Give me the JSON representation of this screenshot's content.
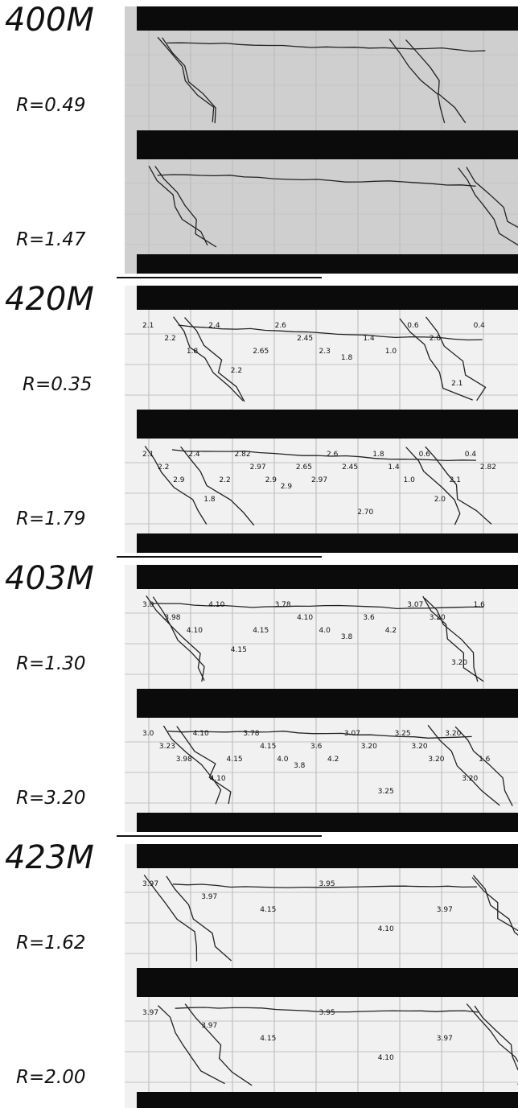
{
  "specimens": [
    {
      "name": "400M",
      "panels": [
        {
          "ratio": "R=0.49"
        },
        {
          "ratio": "R=1.47"
        }
      ]
    },
    {
      "name": "420M",
      "panels": [
        {
          "ratio": "R=0.35",
          "crack_labels": [
            "2.1",
            "2.2",
            "1.8",
            "2.4",
            "2.2",
            "2.65",
            "2.6",
            "2.45",
            "2.3",
            "1.8",
            "1.4",
            "1.0",
            "0.6",
            "2.0",
            "2.1",
            "0.4"
          ]
        },
        {
          "ratio": "R=1.79",
          "crack_labels": [
            "2.1",
            "2.2",
            "2.9",
            "2.4",
            "1.8",
            "2.2",
            "2.82",
            "2.97",
            "2.9",
            "2.9",
            "2.65",
            "2.97",
            "2.6",
            "2.45",
            "2.70",
            "1.8",
            "1.4",
            "1.0",
            "0.6",
            "2.0",
            "2.1",
            "0.4",
            "2.82"
          ]
        }
      ]
    },
    {
      "name": "403M",
      "panels": [
        {
          "ratio": "R=1.30",
          "crack_labels": [
            "3.0",
            "3.98",
            "4.10",
            "4.10",
            "4.15",
            "4.15",
            "3.78",
            "4.10",
            "4.0",
            "3.8",
            "3.6",
            "4.2",
            "3.07",
            "3.20",
            "3.20",
            "1.6"
          ]
        },
        {
          "ratio": "R=3.20",
          "crack_labels": [
            "3.0",
            "3.23",
            "3.98",
            "4.10",
            "4.10",
            "4.15",
            "3.78",
            "4.15",
            "4.0",
            "3.8",
            "3.6",
            "4.2",
            "3.07",
            "3.20",
            "3.25",
            "3.25",
            "3.20",
            "3.20",
            "3.20",
            "3.20",
            "1.6"
          ]
        }
      ]
    },
    {
      "name": "423M",
      "panels": [
        {
          "ratio": "R=1.62",
          "crack_labels": [
            "3.97",
            "3.97",
            "4.15",
            "3.95",
            "4.10",
            "3.97"
          ]
        },
        {
          "ratio": "R=2.00",
          "crack_labels": [
            "3.97",
            "3.97",
            "4.15",
            "3.95",
            "4.10",
            "3.97"
          ]
        }
      ]
    }
  ]
}
